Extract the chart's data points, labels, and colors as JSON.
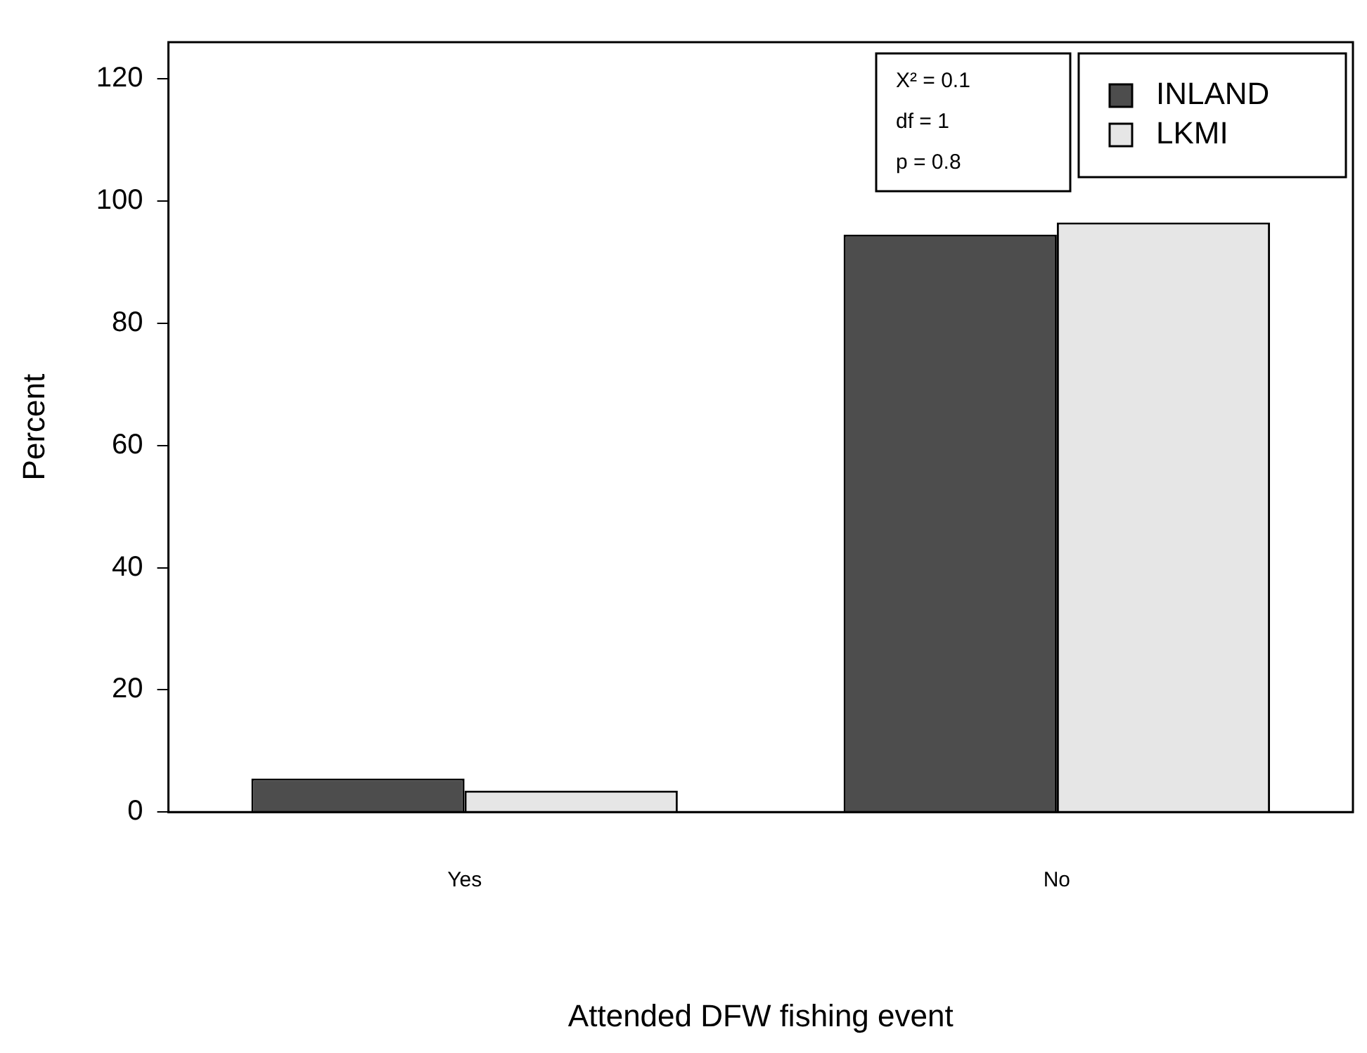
{
  "chart_data": {
    "type": "bar",
    "xlabel": "Attended DFW fishing event",
    "ylabel": "Percent",
    "categories": [
      "Yes",
      "No"
    ],
    "series": [
      {
        "name": "INLAND",
        "color": "#4d4d4d",
        "values": [
          5.5,
          94.5
        ]
      },
      {
        "name": "LKMI",
        "color": "#e6e6e6",
        "values": [
          3.5,
          96.5
        ]
      }
    ],
    "ylim": [
      0,
      126
    ],
    "yticks": [
      0,
      20,
      40,
      60,
      80,
      100,
      120
    ],
    "grid": false,
    "legend": "top right",
    "annotations": [
      "X² = 0.1",
      "df = 1",
      "p = 0.8"
    ]
  }
}
